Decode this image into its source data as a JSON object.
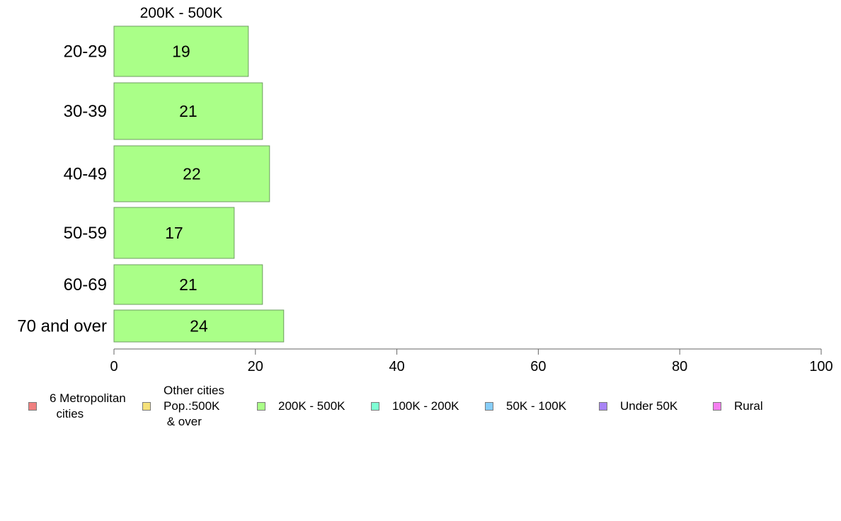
{
  "chart_data": {
    "type": "bar",
    "orientation": "horizontal",
    "title": "200K - 500K",
    "categories": [
      "20-29",
      "30-39",
      "40-49",
      "50-59",
      "60-69",
      "70 and over"
    ],
    "series": [
      {
        "name": "200K - 500K",
        "values": [
          19,
          21,
          22,
          17,
          21,
          24
        ],
        "color": "#aaff88"
      }
    ],
    "xlim": [
      0,
      100
    ],
    "xticks": [
      "0",
      "20",
      "40",
      "60",
      "80",
      "100"
    ],
    "xlabel": "",
    "ylabel": "",
    "grid": false,
    "legend_position": "bottom",
    "legend": [
      {
        "label": "6 Metropolitan\n  cities",
        "color": "#f08080"
      },
      {
        "label": "Other cities\nPop.:500K\n & over",
        "color": "#f5e17a"
      },
      {
        "label": "200K - 500K",
        "color": "#aaff88"
      },
      {
        "label": "100K - 200K",
        "color": "#7fffd4"
      },
      {
        "label": "50K - 100K",
        "color": "#87cefa"
      },
      {
        "label": "Under 50K",
        "color": "#a884f5"
      },
      {
        "label": "Rural",
        "color": "#f57ff0"
      }
    ]
  }
}
